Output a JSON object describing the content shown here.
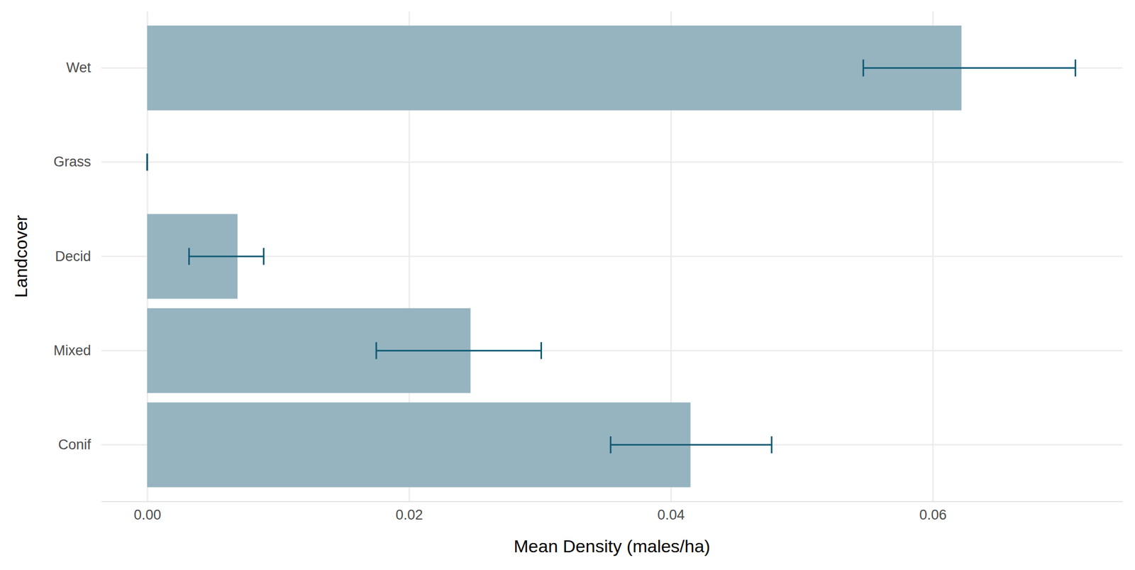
{
  "chart_data": {
    "type": "bar",
    "orientation": "horizontal",
    "x_label": "Mean Density (males/ha)",
    "y_label": "Landcover",
    "categories": [
      "Wet",
      "Grass",
      "Decid",
      "Mixed",
      "Conif"
    ],
    "values": [
      0.0622,
      0,
      0.0069,
      0.0247,
      0.0415
    ],
    "error_low": [
      0.0547,
      0,
      0.0032,
      0.0175,
      0.0354
    ],
    "error_high": [
      0.0709,
      0,
      0.0089,
      0.0301,
      0.0477
    ],
    "color": "#96b4c0",
    "xlim": [
      -0.0035,
      0.0745
    ],
    "xticks": [
      {
        "value": 0,
        "label": "0.00"
      },
      {
        "value": 0.02,
        "label": "0.02"
      },
      {
        "value": 0.04,
        "label": "0.04"
      },
      {
        "value": 0.06,
        "label": "0.06"
      }
    ],
    "grid": true
  }
}
